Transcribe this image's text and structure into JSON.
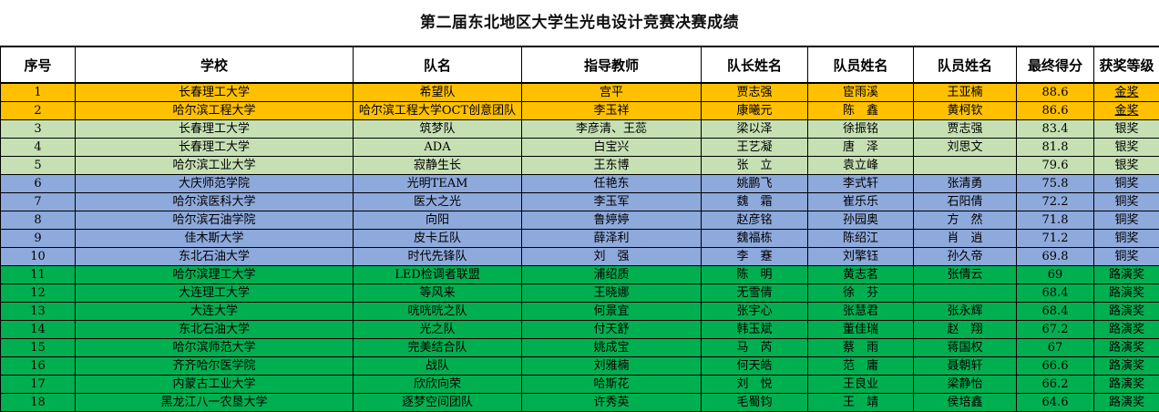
{
  "title": "第二届东北地区大学生光电设计竞赛决赛成绩",
  "colors": {
    "gold": "#FFC000",
    "silver": "#C6E0B4",
    "bronze": "#8EA9DB",
    "road": "#00B050"
  },
  "headers": [
    "序号",
    "学校",
    "队名",
    "指导教师",
    "队长姓名",
    "队员姓名",
    "队员姓名",
    "最终得分",
    "获奖等级"
  ],
  "rows": [
    {
      "tier": "gold",
      "cells": [
        "1",
        "长春理工大学",
        "希望队",
        "宫平",
        "贾志强",
        "宦雨溪",
        "王亚楠",
        "88.6",
        "金奖"
      ]
    },
    {
      "tier": "gold",
      "cells": [
        "2",
        "哈尔滨工程大学",
        "哈尔滨工程大学OCT创意团队",
        "李玉祥",
        "康曦元",
        "陈　鑫",
        "黄柯钦",
        "86.6",
        "金奖"
      ]
    },
    {
      "tier": "silver",
      "cells": [
        "3",
        "长春理工大学",
        "筑梦队",
        "李彦清、王蕊",
        "梁以泽",
        "徐振铭",
        "贾志强",
        "83.4",
        "银奖"
      ]
    },
    {
      "tier": "silver",
      "cells": [
        "4",
        "长春理工大学",
        "ADA",
        "白宝兴",
        "王艺凝",
        "唐　泽",
        "刘思文",
        "81.8",
        "银奖"
      ]
    },
    {
      "tier": "silver",
      "cells": [
        "5",
        "哈尔滨工业大学",
        "寂静生长",
        "王东博",
        "张　立",
        "袁立峰",
        "",
        "79.6",
        "银奖"
      ]
    },
    {
      "tier": "bronze",
      "cells": [
        "6",
        "大庆师范学院",
        "光明TEAM",
        "任艳东",
        "姚鹏飞",
        "李式轩",
        "张清勇",
        "75.8",
        "铜奖"
      ]
    },
    {
      "tier": "bronze",
      "cells": [
        "7",
        "哈尔滨医科大学",
        "医大之光",
        "李玉军",
        "魏　霜",
        "崔乐乐",
        "石阳倩",
        "72.2",
        "铜奖"
      ]
    },
    {
      "tier": "bronze",
      "cells": [
        "8",
        "哈尔滨石油学院",
        "向阳",
        "鲁婷婷",
        "赵彦铭",
        "孙园奥",
        "方　然",
        "71.8",
        "铜奖"
      ]
    },
    {
      "tier": "bronze",
      "cells": [
        "9",
        "佳木斯大学",
        "皮卡丘队",
        "薛泽利",
        "魏福栋",
        "陈绍江",
        "肖　逍",
        "71.2",
        "铜奖"
      ]
    },
    {
      "tier": "bronze",
      "cells": [
        "10",
        "东北石油大学",
        "时代先锋队",
        "刘　强",
        "李　蹇",
        "刘擎钰",
        "孙久帝",
        "69.8",
        "铜奖"
      ]
    },
    {
      "tier": "road",
      "cells": [
        "11",
        "哈尔滨理工大学",
        "LED检调者联盟",
        "浦绍质",
        "陈　明",
        "黄志茗",
        "张倩云",
        "69",
        "路演奖"
      ]
    },
    {
      "tier": "road",
      "cells": [
        "12",
        "大连理工大学",
        "等风来",
        "王晓娜",
        "无雪倩",
        "徐　芬",
        "",
        "68.4",
        "路演奖"
      ]
    },
    {
      "tier": "road",
      "cells": [
        "13",
        "大连大学",
        "咣咣咣之队",
        "何景宜",
        "张宇心",
        "张慧君",
        "张永辉",
        "68.4",
        "路演奖"
      ]
    },
    {
      "tier": "road",
      "cells": [
        "14",
        "东北石油大学",
        "光之队",
        "付天舒",
        "韩玉斌",
        "董佳瑞",
        "赵　翔",
        "67.2",
        "路演奖"
      ]
    },
    {
      "tier": "road",
      "cells": [
        "15",
        "哈尔滨师范大学",
        "完美结合队",
        "姚成宝",
        "马　芮",
        "蔡　雨",
        "蒋国权",
        "67",
        "路演奖"
      ]
    },
    {
      "tier": "road",
      "cells": [
        "16",
        "齐齐哈尔医学院",
        "战队",
        "刘雅楠",
        "何天皓",
        "范　庸",
        "聂朝轩",
        "66.6",
        "路演奖"
      ]
    },
    {
      "tier": "road",
      "cells": [
        "17",
        "内蒙古工业大学",
        "欣欣向荣",
        "哈斯花",
        "刘　悦",
        "王良业",
        "梁静怡",
        "66.2",
        "路演奖"
      ]
    },
    {
      "tier": "road",
      "cells": [
        "18",
        "黑龙江八一农垦大学",
        "逐梦空间团队",
        "许秀英",
        "毛蜀钧",
        "王　靖",
        "侯培鑫",
        "64.6",
        "路演奖"
      ]
    }
  ]
}
